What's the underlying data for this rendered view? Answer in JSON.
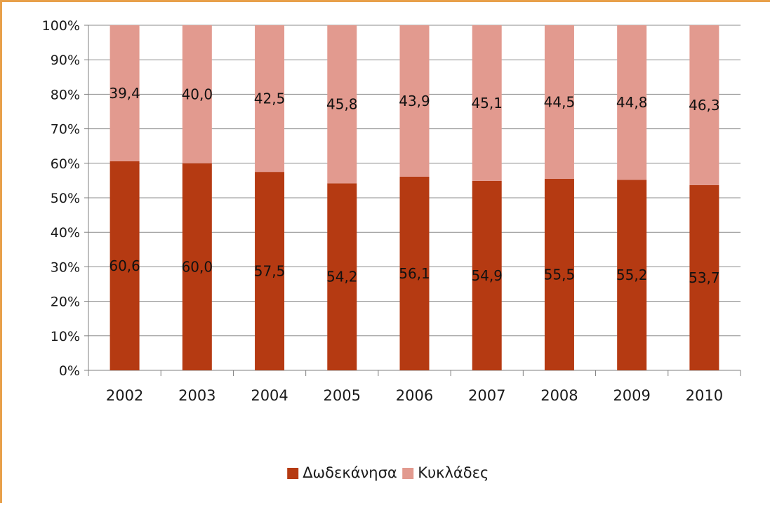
{
  "chart_data": {
    "type": "bar",
    "stacked": true,
    "percent_stacked": true,
    "categories": [
      "2002",
      "2003",
      "2004",
      "2005",
      "2006",
      "2007",
      "2008",
      "2009",
      "2010"
    ],
    "series": [
      {
        "name": "Δωδεκάνησα",
        "color": "#b53a12",
        "values": [
          60.6,
          60.0,
          57.5,
          54.2,
          56.1,
          54.9,
          55.5,
          55.2,
          53.7
        ],
        "labels": [
          "60,6",
          "60,0",
          "57,5",
          "54,2",
          "56,1",
          "54,9",
          "55,5",
          "55,2",
          "53,7"
        ]
      },
      {
        "name": "Κυκλάδες",
        "color": "#e29a8f",
        "values": [
          39.4,
          40.0,
          42.5,
          45.8,
          43.9,
          45.1,
          44.5,
          44.8,
          46.3
        ],
        "labels": [
          "39,4",
          "40,0",
          "42,5",
          "45,8",
          "43,9",
          "45,1",
          "44,5",
          "44,8",
          "46,3"
        ]
      }
    ],
    "ylim": [
      0,
      100
    ],
    "yticks": [
      "0%",
      "10%",
      "20%",
      "30%",
      "40%",
      "50%",
      "60%",
      "70%",
      "80%",
      "90%",
      "100%"
    ],
    "grid": true,
    "legend_position": "bottom"
  }
}
